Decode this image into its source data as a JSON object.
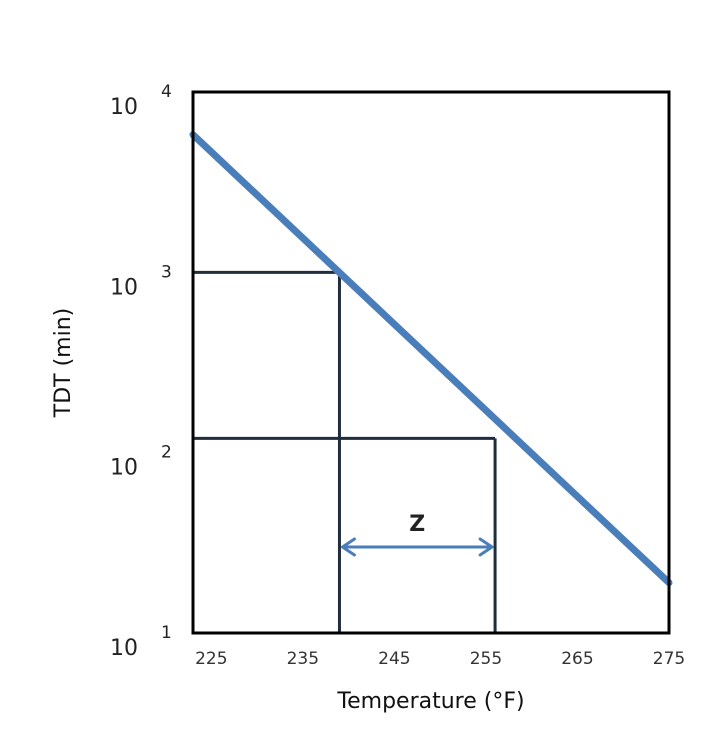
{
  "chart_data": {
    "type": "line",
    "xlabel": "Temperature (°F)",
    "ylabel": "TDT (min)",
    "xlim": [
      223,
      275
    ],
    "ylim": [
      10,
      10000
    ],
    "y_scale": "log",
    "x_ticks": [
      "225",
      "235",
      "245",
      "255",
      "265",
      "275"
    ],
    "x_tick_values": [
      225,
      235,
      245,
      255,
      265,
      275
    ],
    "y_ticks": [
      {
        "value": 10000,
        "base": "10",
        "exp": "4"
      },
      {
        "value": 1000,
        "base": "10",
        "exp": "3"
      },
      {
        "value": 100,
        "base": "10",
        "exp": "2"
      },
      {
        "value": 10,
        "base": "10",
        "exp": "1"
      }
    ],
    "series": [
      {
        "x": [
          223,
          275
        ],
        "y": [
          5800,
          19
        ],
        "color": "#4a7ebb"
      }
    ],
    "reference_points": [
      {
        "x": 239,
        "y": 1000
      },
      {
        "x": 256,
        "y": 120
      }
    ],
    "annotation": {
      "label": "Z",
      "x_from": 239,
      "x_to": 256,
      "y": 30
    },
    "grid": false,
    "legend": "none"
  }
}
